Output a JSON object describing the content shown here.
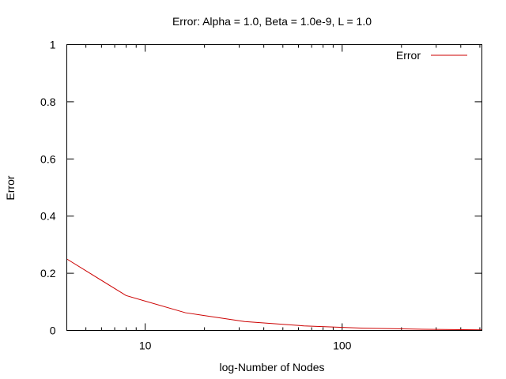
{
  "chart_data": {
    "type": "line",
    "title": "Error: Alpha = 1.0, Beta = 1.0e-9, L = 1.0",
    "xlabel": "log-Number of Nodes",
    "ylabel": "Error",
    "xscale": "log",
    "xlim": [
      4,
      512
    ],
    "ylim": [
      0,
      1
    ],
    "x_major_ticks": [
      10,
      100
    ],
    "x_tick_labels": [
      "10",
      "100"
    ],
    "y_ticks": [
      0,
      0.2,
      0.4,
      0.6,
      0.8,
      1
    ],
    "y_tick_labels": [
      "0",
      "0.2",
      "0.4",
      "0.6",
      "0.8",
      "1"
    ],
    "grid": false,
    "legend_position": "top-right",
    "series": [
      {
        "name": "Error",
        "color": "#cc0000",
        "x": [
          4,
          8,
          16,
          32,
          64,
          128,
          256,
          512
        ],
        "y": [
          0.25,
          0.122,
          0.062,
          0.031,
          0.016,
          0.008,
          0.004,
          0.002
        ]
      }
    ]
  }
}
